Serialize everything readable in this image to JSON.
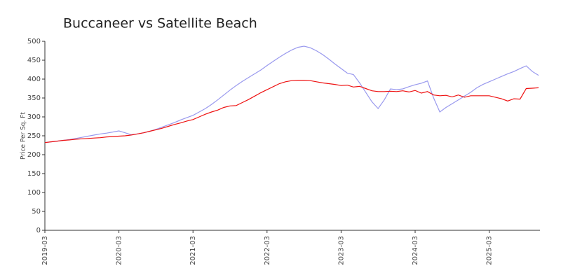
{
  "chart_data": {
    "type": "line",
    "title": "Buccaneer vs Satellite Beach",
    "ylabel": "Price Per Sq. Ft",
    "categories": [
      "2019-03",
      null,
      null,
      null,
      null,
      null,
      null,
      null,
      null,
      null,
      null,
      null,
      "2020-03",
      null,
      null,
      null,
      null,
      null,
      null,
      null,
      null,
      null,
      null,
      null,
      "2021-03",
      null,
      null,
      null,
      null,
      null,
      null,
      null,
      null,
      null,
      null,
      null,
      "2022-03",
      null,
      null,
      null,
      null,
      null,
      null,
      null,
      null,
      null,
      null,
      null,
      "2023-03",
      null,
      null,
      null,
      null,
      null,
      null,
      null,
      null,
      null,
      null,
      null,
      "2024-03",
      null,
      null,
      null,
      null,
      null,
      null,
      null,
      null,
      null,
      null,
      null,
      "2025-03",
      null,
      null,
      null,
      null,
      null,
      null,
      null,
      null
    ],
    "series": [
      {
        "color": "#9999ee",
        "values": [
          232,
          234,
          236,
          238,
          240,
          243,
          246,
          249,
          252,
          255,
          257,
          260,
          263,
          258,
          253,
          255,
          258,
          262,
          267,
          273,
          279,
          285,
          292,
          298,
          304,
          313,
          322,
          333,
          345,
          358,
          371,
          383,
          394,
          404,
          414,
          424,
          436,
          447,
          458,
          468,
          477,
          484,
          487,
          483,
          475,
          465,
          453,
          440,
          428,
          416,
          412,
          390,
          365,
          340,
          322,
          345,
          374,
          372,
          374,
          380,
          385,
          389,
          395,
          350,
          313,
          325,
          335,
          345,
          355,
          365,
          377,
          386,
          393,
          400,
          407,
          414,
          420,
          428,
          435,
          420,
          410
        ]
      },
      {
        "color": "#ee1111",
        "values": [
          232,
          234,
          236,
          238,
          239,
          241,
          242,
          243,
          244,
          245,
          247,
          248,
          249,
          250,
          252,
          255,
          258,
          262,
          266,
          270,
          275,
          280,
          284,
          289,
          293,
          300,
          307,
          313,
          318,
          325,
          329,
          330,
          338,
          346,
          355,
          364,
          372,
          380,
          388,
          393,
          396,
          397,
          397,
          396,
          393,
          390,
          388,
          386,
          383,
          384,
          379,
          381,
          375,
          369,
          367,
          367,
          368,
          367,
          369,
          366,
          370,
          363,
          367,
          358,
          356,
          357,
          353,
          358,
          352,
          356,
          356,
          356,
          356,
          352,
          348,
          342,
          348,
          347,
          375,
          376,
          377
        ]
      }
    ],
    "ylim": [
      0,
      500
    ],
    "yticks": [
      0,
      50,
      100,
      150,
      200,
      250,
      300,
      350,
      400,
      450,
      500
    ]
  }
}
